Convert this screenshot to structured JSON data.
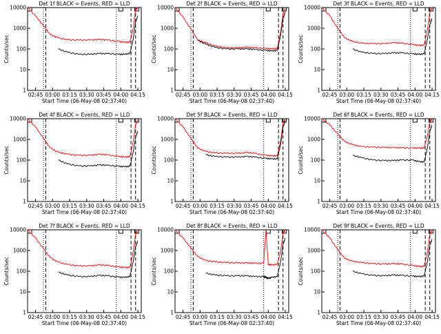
{
  "figure": {
    "ylabel": "Counts/sec",
    "xlabel": "Start Time (06-May-08 02:37:40)",
    "series_names": [
      "Events",
      "LLD"
    ],
    "colors": {
      "events": "#000000",
      "lld": "#ff0000"
    },
    "yscale": "log",
    "ylim": [
      1,
      10000
    ],
    "yticks": [
      "1",
      "10",
      "100",
      "1000",
      "10000"
    ]
  },
  "chart_data": [
    {
      "type": "line",
      "title": "Det 1f BLACK = Events, RED = LLD",
      "xticks": [
        "02:45",
        "03:00",
        "03:15",
        "03:30",
        "03:45",
        "04:00",
        "04:15"
      ],
      "xlabel": "Start Time (06-May-08 02:37:40)",
      "ylabel": "Counts/sec",
      "yscale": "log",
      "ylim": [
        1,
        10000
      ],
      "x_minutes": [
        0,
        7,
        14,
        20,
        27,
        35,
        45,
        55,
        63,
        70,
        80,
        85,
        90,
        93,
        95,
        97
      ],
      "series": [
        {
          "name": "LLD",
          "color": "red",
          "values": [
            10000,
            4000,
            1300,
            500,
            340,
            280,
            270,
            270,
            290,
            270,
            230,
            210,
            210,
            1000,
            8000,
            10000
          ]
        },
        {
          "name": "Events",
          "color": "black",
          "values": [
            null,
            null,
            null,
            null,
            100,
            70,
            55,
            55,
            60,
            60,
            55,
            55,
            60,
            300,
            2000,
            4000
          ]
        }
      ]
    },
    {
      "type": "line",
      "title": "Det 2f BLACK = Events, RED = LLD",
      "xticks": [
        "02:45",
        "03:00",
        "03:15",
        "03:30",
        "03:45",
        "04:00",
        "04:15"
      ],
      "xlabel": "Start Time (06-May-08 02:37:40)",
      "ylabel": "Counts/sec",
      "yscale": "log",
      "ylim": [
        1,
        10000
      ],
      "x_minutes": [
        0,
        7,
        14,
        20,
        27,
        35,
        45,
        55,
        63,
        70,
        80,
        85,
        90,
        93,
        95,
        97
      ],
      "series": [
        {
          "name": "LLD",
          "color": "red",
          "values": [
            10000,
            3500,
            900,
            270,
            200,
            140,
            115,
            115,
            120,
            115,
            105,
            100,
            105,
            700,
            5000,
            9000
          ]
        },
        {
          "name": "Events",
          "color": "black",
          "values": [
            null,
            null,
            null,
            260,
            170,
            120,
            100,
            100,
            100,
            95,
            85,
            80,
            85,
            500,
            3000,
            6000
          ]
        }
      ]
    },
    {
      "type": "line",
      "title": "Det 3f BLACK = Events, RED = LLD",
      "xticks": [
        "02:45",
        "03:00",
        "03:15",
        "03:30",
        "03:45",
        "04:00",
        "04:15"
      ],
      "xlabel": "Start Time (06-May-08 02:37:40)",
      "ylabel": "Counts/sec",
      "yscale": "log",
      "ylim": [
        1,
        10000
      ],
      "x_minutes": [
        0,
        7,
        14,
        20,
        27,
        35,
        45,
        55,
        63,
        70,
        80,
        85,
        90,
        93,
        95,
        97
      ],
      "series": [
        {
          "name": "LLD",
          "color": "red",
          "values": [
            10000,
            4000,
            1000,
            350,
            230,
            190,
            180,
            180,
            200,
            190,
            165,
            150,
            150,
            900,
            6000,
            10000
          ]
        },
        {
          "name": "Events",
          "color": "black",
          "values": [
            null,
            null,
            null,
            null,
            100,
            70,
            60,
            60,
            65,
            65,
            58,
            55,
            58,
            300,
            1500,
            3000
          ]
        }
      ]
    },
    {
      "type": "line",
      "title": "Det 4f BLACK = Events, RED = LLD",
      "xticks": [
        "02:45",
        "03:00",
        "03:15",
        "03:30",
        "03:45",
        "04:00",
        "04:15"
      ],
      "xlabel": "Start Time (06-May-08 02:37:40)",
      "ylabel": "Counts/sec",
      "yscale": "log",
      "ylim": [
        1,
        10000
      ],
      "x_minutes": [
        0,
        7,
        14,
        20,
        27,
        35,
        45,
        55,
        63,
        70,
        80,
        85,
        90,
        93,
        95,
        97
      ],
      "series": [
        {
          "name": "LLD",
          "color": "red",
          "values": [
            10000,
            4000,
            1100,
            380,
            240,
            190,
            170,
            170,
            190,
            180,
            150,
            140,
            145,
            800,
            5000,
            9000
          ]
        },
        {
          "name": "Events",
          "color": "black",
          "values": [
            null,
            null,
            null,
            null,
            100,
            65,
            52,
            52,
            58,
            56,
            50,
            48,
            50,
            250,
            1300,
            2500
          ]
        }
      ]
    },
    {
      "type": "line",
      "title": "Det 5f BLACK = Events, RED = LLD",
      "xticks": [
        "02:45",
        "03:00",
        "03:15",
        "03:30",
        "03:45",
        "04:00",
        "04:15"
      ],
      "xlabel": "Start Time (06-May-08 02:37:40)",
      "ylabel": "Counts/sec",
      "yscale": "log",
      "ylim": [
        1,
        10000
      ],
      "x_minutes": [
        0,
        7,
        14,
        20,
        27,
        35,
        45,
        55,
        63,
        70,
        80,
        85,
        90,
        93,
        95,
        97
      ],
      "series": [
        {
          "name": "LLD",
          "color": "red",
          "values": [
            10000,
            4000,
            1100,
            380,
            260,
            220,
            210,
            210,
            230,
            210,
            170,
            160,
            160,
            900,
            6000,
            10000
          ]
        },
        {
          "name": "Events",
          "color": "black",
          "values": [
            null,
            null,
            null,
            null,
            180,
            150,
            140,
            140,
            150,
            140,
            120,
            115,
            115,
            600,
            4000,
            8000
          ]
        }
      ]
    },
    {
      "type": "line",
      "title": "Det 6f BLACK = Events, RED = LLD",
      "xticks": [
        "02:45",
        "03:00",
        "03:15",
        "03:30",
        "03:45",
        "04:00",
        "04:15"
      ],
      "xlabel": "Start Time (06-May-08 02:37:40)",
      "ylabel": "Counts/sec",
      "yscale": "log",
      "ylim": [
        1,
        10000
      ],
      "x_minutes": [
        0,
        7,
        14,
        20,
        27,
        35,
        45,
        55,
        63,
        70,
        80,
        85,
        90,
        93,
        95,
        97
      ],
      "series": [
        {
          "name": "LLD",
          "color": "red",
          "values": [
            10000,
            5000,
            1800,
            800,
            550,
            450,
            420,
            410,
            400,
            390,
            380,
            380,
            380,
            1500,
            7000,
            10000
          ]
        },
        {
          "name": "Events",
          "color": "black",
          "values": [
            null,
            null,
            null,
            null,
            170,
            130,
            100,
            95,
            95,
            100,
            100,
            85,
            80,
            400,
            2500,
            5000
          ]
        }
      ]
    },
    {
      "type": "line",
      "title": "Det 7f BLACK = Events, RED = LLD",
      "xticks": [
        "02:45",
        "03:00",
        "03:15",
        "03:30",
        "03:45",
        "04:00",
        "04:15"
      ],
      "xlabel": "Start Time (06-May-08 02:37:40)",
      "ylabel": "Counts/sec",
      "yscale": "log",
      "ylim": [
        1,
        10000
      ],
      "x_minutes": [
        0,
        7,
        14,
        20,
        27,
        35,
        45,
        55,
        63,
        70,
        80,
        85,
        90,
        93,
        95,
        97
      ],
      "series": [
        {
          "name": "LLD",
          "color": "red",
          "values": [
            10000,
            4000,
            1200,
            450,
            270,
            210,
            180,
            180,
            200,
            190,
            160,
            150,
            150,
            900,
            6000,
            10000
          ]
        },
        {
          "name": "Events",
          "color": "black",
          "values": [
            null,
            null,
            null,
            null,
            90,
            65,
            55,
            55,
            62,
            60,
            52,
            50,
            55,
            300,
            1500,
            3000
          ]
        }
      ]
    },
    {
      "type": "line",
      "title": "Det 8f BLACK = Events, RED = LLD",
      "xticks": [
        "02:45",
        "03:00",
        "03:15",
        "03:30",
        "03:45",
        "04:00",
        "04:15"
      ],
      "xlabel": "Start Time (06-May-08 02:37:40)",
      "ylabel": "Counts/sec",
      "yscale": "log",
      "ylim": [
        1,
        10000
      ],
      "x_minutes": [
        0,
        7,
        14,
        20,
        27,
        35,
        45,
        55,
        63,
        70,
        78,
        80,
        82,
        85,
        90,
        93,
        95,
        97
      ],
      "series": [
        {
          "name": "LLD",
          "color": "red",
          "values": [
            10000,
            4000,
            1300,
            500,
            330,
            280,
            260,
            250,
            250,
            240,
            240,
            10000,
            210,
            200,
            210,
            1000,
            7000,
            10000
          ]
        },
        {
          "name": "Events",
          "color": "black",
          "values": [
            null,
            null,
            null,
            null,
            80,
            65,
            60,
            60,
            60,
            55,
            55,
            50,
            45,
            50,
            55,
            300,
            2000,
            4000
          ]
        }
      ]
    },
    {
      "type": "line",
      "title": "Det 9f BLACK = Events, RED = LLD",
      "xticks": [
        "02:45",
        "03:00",
        "03:15",
        "03:30",
        "03:45",
        "04:00",
        "04:15"
      ],
      "xlabel": "Start Time (06-May-08 02:37:40)",
      "ylabel": "Counts/sec",
      "yscale": "log",
      "ylim": [
        1,
        10000
      ],
      "x_minutes": [
        0,
        7,
        14,
        20,
        27,
        35,
        45,
        55,
        63,
        70,
        80,
        85,
        90,
        93,
        95,
        97
      ],
      "series": [
        {
          "name": "LLD",
          "color": "red",
          "values": [
            10000,
            4000,
            1100,
            420,
            300,
            260,
            230,
            220,
            230,
            220,
            190,
            170,
            170,
            900,
            6000,
            10000
          ]
        },
        {
          "name": "Events",
          "color": "black",
          "values": [
            null,
            null,
            null,
            null,
            100,
            75,
            62,
            60,
            65,
            62,
            58,
            55,
            58,
            300,
            1800,
            3500
          ]
        }
      ]
    }
  ]
}
